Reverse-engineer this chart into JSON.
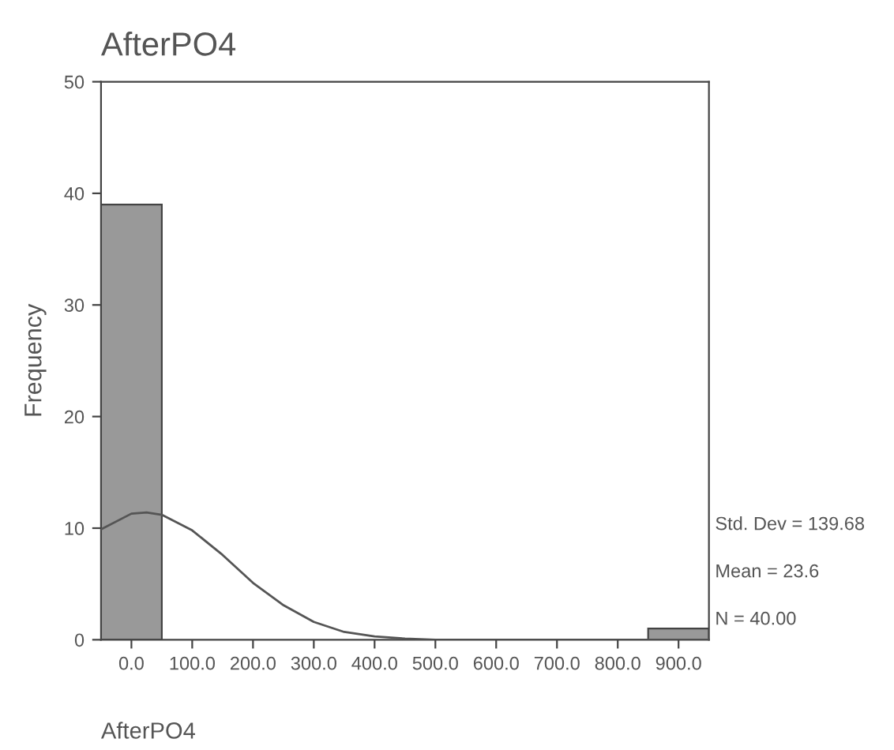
{
  "chart_data": [
    {
      "type": "histogram",
      "title": "AfterPO4",
      "xlabel": "AfterPO4",
      "ylabel": "Frequency",
      "bins": [
        -50,
        50,
        150,
        250,
        350,
        450,
        550,
        650,
        750,
        850,
        950
      ],
      "values": [
        39,
        0,
        0,
        0,
        0,
        0,
        0,
        0,
        0,
        1
      ],
      "color": "#999999",
      "series": [
        {
          "type": "line",
          "color": "#555555",
          "x": [
            -50,
            0,
            25,
            50,
            100,
            150,
            200,
            250,
            300,
            350,
            400,
            450,
            500,
            600,
            700,
            800,
            900,
            950
          ],
          "values": [
            9.9,
            11.3,
            11.4,
            11.2,
            9.8,
            7.6,
            5.1,
            3.1,
            1.6,
            0.7,
            0.3,
            0.1,
            0,
            0,
            0,
            0,
            0,
            0
          ]
        }
      ],
      "xlim": [
        -50,
        950
      ],
      "xticks": [
        {
          "value": 0,
          "label": "0.0"
        },
        {
          "value": 100,
          "label": "100.0"
        },
        {
          "value": 200,
          "label": "200.0"
        },
        {
          "value": 300,
          "label": "300.0"
        },
        {
          "value": 400,
          "label": "400.0"
        },
        {
          "value": 500,
          "label": "500.0"
        },
        {
          "value": 600,
          "label": "600.0"
        },
        {
          "value": 700,
          "label": "700.0"
        },
        {
          "value": 800,
          "label": "800.0"
        },
        {
          "value": 900,
          "label": "900.0"
        }
      ],
      "ylim": [
        0,
        50
      ],
      "yticks": [
        0,
        10,
        20,
        30,
        40,
        50
      ],
      "annotations": [
        "Std. Dev = 139.68",
        "Mean = 23.6",
        "N = 40.00"
      ],
      "grid": false,
      "legend": false
    }
  ]
}
